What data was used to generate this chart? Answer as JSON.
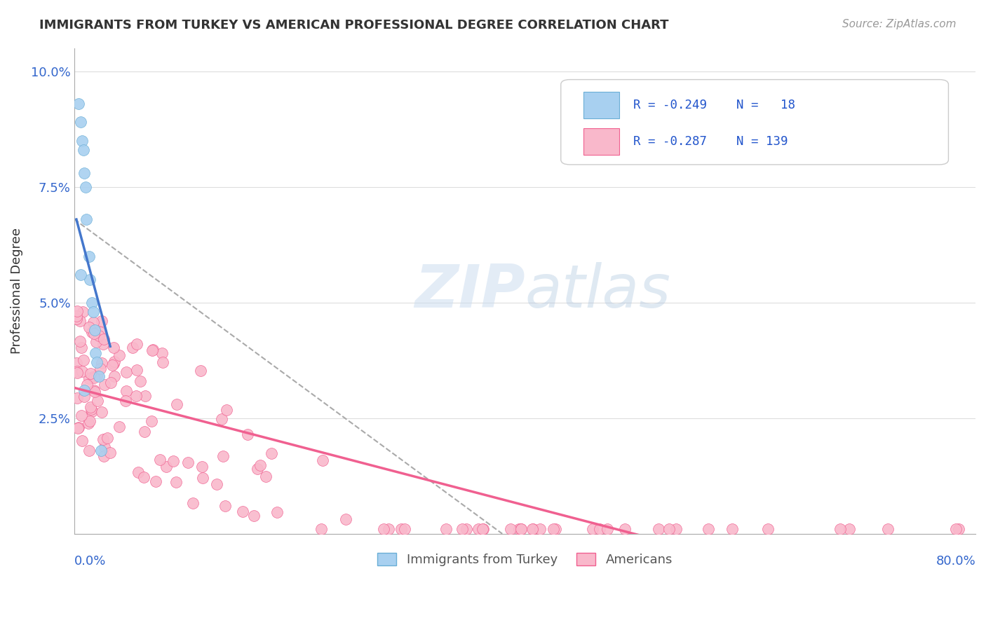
{
  "title": "IMMIGRANTS FROM TURKEY VS AMERICAN PROFESSIONAL DEGREE CORRELATION CHART",
  "source": "Source: ZipAtlas.com",
  "ylabel": "Professional Degree",
  "xmin": 0.0,
  "xmax": 0.8,
  "ymin": 0.0,
  "ymax": 0.105,
  "color_turkey": "#a8d0f0",
  "color_turkey_edge": "#6aaed6",
  "color_americans": "#f9b8cb",
  "color_americans_edge": "#f06090",
  "color_turkey_line": "#4477cc",
  "color_americans_line": "#f06090",
  "color_dashed_line": "#aaaaaa",
  "watermark_zip": "ZIP",
  "watermark_atlas": "atlas",
  "legend_R1": "R = -0.249",
  "legend_N1": "N =  18",
  "legend_R2": "R = -0.287",
  "legend_N2": "N = 139"
}
